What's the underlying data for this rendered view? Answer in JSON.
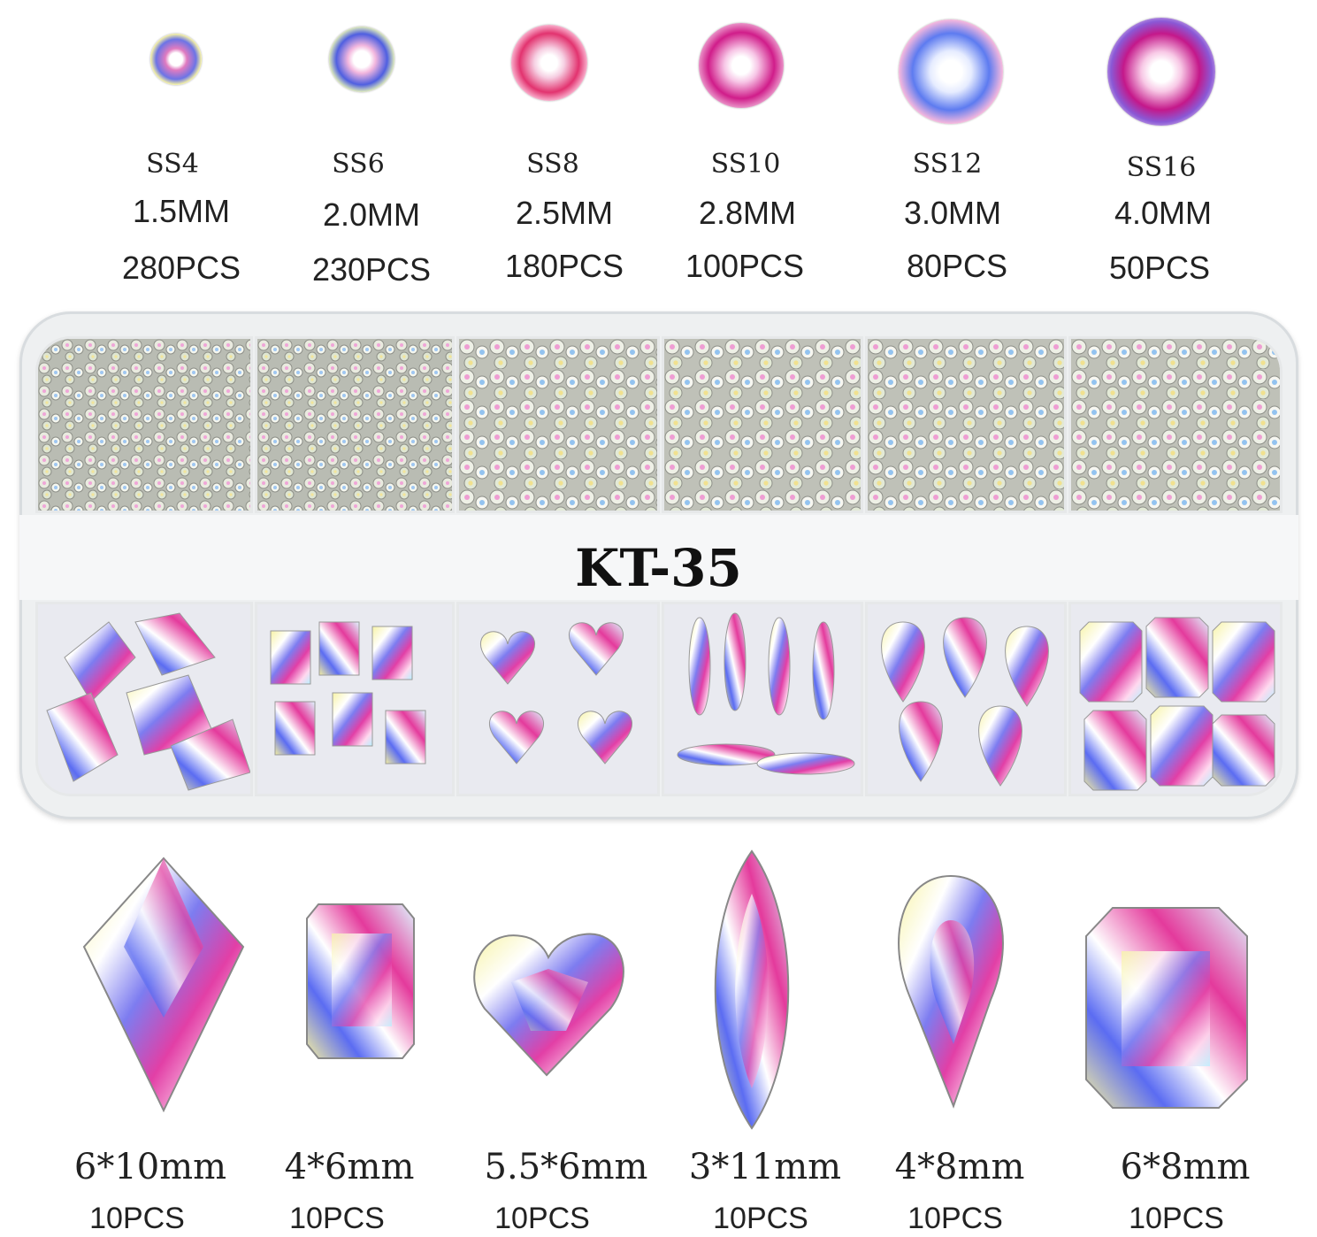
{
  "round_stones": [
    {
      "code": "SS4",
      "size": "1.5MM",
      "pcs": "280PCS"
    },
    {
      "code": "SS6",
      "size": "2.0MM",
      "pcs": "230PCS"
    },
    {
      "code": "SS8",
      "size": "2.5MM",
      "pcs": "180PCS"
    },
    {
      "code": "SS10",
      "size": "2.8MM",
      "pcs": "100PCS"
    },
    {
      "code": "SS12",
      "size": "3.0MM",
      "pcs": "80PCS"
    },
    {
      "code": "SS16",
      "size": "4.0MM",
      "pcs": "50PCS"
    }
  ],
  "box_label": "KT-35",
  "shaped_stones": [
    {
      "shape": "rhombus",
      "size": "6*10mm",
      "pcs": "10PCS"
    },
    {
      "shape": "rectangle",
      "size": "4*6mm",
      "pcs": "10PCS"
    },
    {
      "shape": "heart",
      "size": "5.5*6mm",
      "pcs": "10PCS"
    },
    {
      "shape": "marquise",
      "size": "3*11mm",
      "pcs": "10PCS"
    },
    {
      "shape": "teardrop",
      "size": "4*8mm",
      "pcs": "10PCS"
    },
    {
      "shape": "octagon",
      "size": "6*8mm",
      "pcs": "10PCS"
    }
  ]
}
